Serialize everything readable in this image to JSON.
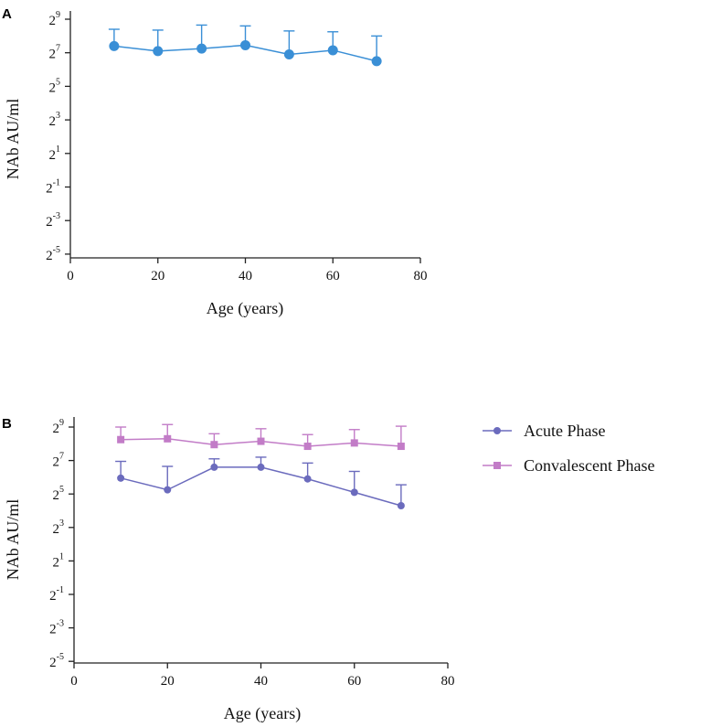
{
  "colors": {
    "panel_a_series": "#3a8fd6",
    "acute": "#6b6bbd",
    "convalescent": "#c27cc7"
  },
  "chart_data": [
    {
      "panel": "A",
      "type": "line",
      "xlabel": "Age (years)",
      "ylabel": "NAb AU/ml",
      "xlim": [
        0,
        80
      ],
      "x_ticks": [
        0,
        20,
        40,
        60,
        80
      ],
      "y_scale": "log2",
      "y_tick_exponents": [
        9,
        7,
        5,
        3,
        1,
        -1,
        -3,
        -5
      ],
      "ylim_log2": [
        -5,
        10
      ],
      "series": [
        {
          "name": "",
          "marker": "circle",
          "x": [
            10,
            20,
            30,
            40,
            50,
            60,
            70
          ],
          "y_log2": [
            7.4,
            7.1,
            7.25,
            7.45,
            6.9,
            7.15,
            6.5
          ],
          "err_upper_log2": [
            8.4,
            8.35,
            8.65,
            8.6,
            8.3,
            8.25,
            8.0
          ]
        }
      ]
    },
    {
      "panel": "B",
      "type": "line",
      "xlabel": "Age (years)",
      "ylabel": "NAb AU/ml",
      "xlim": [
        0,
        80
      ],
      "x_ticks": [
        0,
        20,
        40,
        60,
        80
      ],
      "y_scale": "log2",
      "y_tick_exponents": [
        9,
        7,
        5,
        3,
        1,
        -1,
        -3,
        -5
      ],
      "ylim_log2": [
        -5,
        10
      ],
      "legend": [
        "Acute Phase",
        "Convalescent Phase"
      ],
      "legend_position": "right",
      "series": [
        {
          "name": "Acute Phase",
          "marker": "circle",
          "x": [
            10,
            20,
            30,
            40,
            50,
            60,
            70
          ],
          "y_log2": [
            5.95,
            5.25,
            6.6,
            6.6,
            5.9,
            5.1,
            4.3
          ],
          "err_upper_log2": [
            6.95,
            6.65,
            7.1,
            7.2,
            6.85,
            6.35,
            5.55
          ]
        },
        {
          "name": "Convalescent Phase",
          "marker": "square",
          "x": [
            10,
            20,
            30,
            40,
            50,
            60,
            70
          ],
          "y_log2": [
            8.25,
            8.3,
            7.95,
            8.15,
            7.85,
            8.05,
            7.85
          ],
          "err_upper_log2": [
            9.0,
            9.15,
            8.6,
            8.9,
            8.55,
            8.85,
            9.05
          ]
        }
      ]
    }
  ]
}
